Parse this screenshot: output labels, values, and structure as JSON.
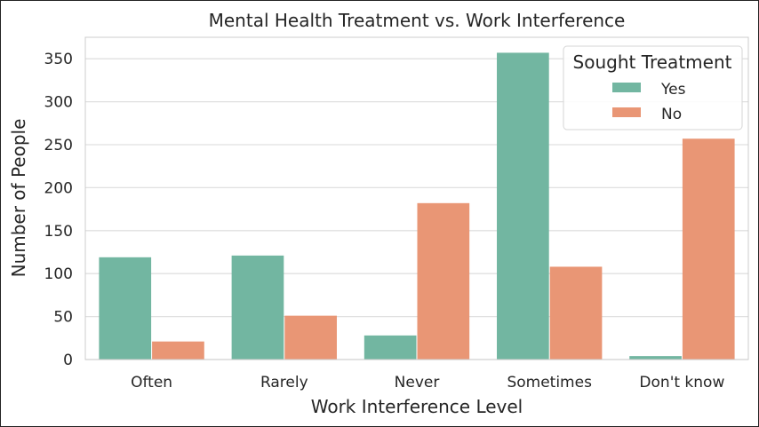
{
  "chart_data": {
    "type": "bar",
    "title": "Mental Health Treatment vs. Work Interference",
    "xlabel": "Work Interference Level",
    "ylabel": "Number of People",
    "categories": [
      "Often",
      "Rarely",
      "Never",
      "Sometimes",
      "Don't know"
    ],
    "series": [
      {
        "name": "Yes",
        "color": "#72b6a1",
        "values": [
          119,
          121,
          28,
          357,
          4
        ]
      },
      {
        "name": "No",
        "color": "#e99675",
        "values": [
          21,
          51,
          182,
          108,
          257
        ]
      }
    ],
    "ylim": [
      0,
      375
    ],
    "yticks": [
      0,
      50,
      100,
      150,
      200,
      250,
      300,
      350
    ],
    "grid": true,
    "legend": {
      "title": "Sought Treatment",
      "placement": "top-right"
    }
  }
}
